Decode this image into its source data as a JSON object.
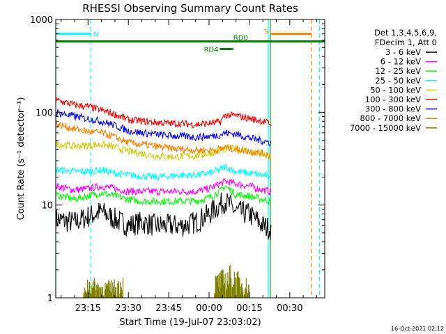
{
  "chart_data": {
    "type": "line",
    "title": "RHESSI Observing Summary Count Rates",
    "xlabel": "Start Time (19-Jul-07 23:03:02)",
    "ylabel": "Count Rate (s⁻¹ detector⁻¹)",
    "y_scale": "log",
    "ylim": [
      1,
      1000
    ],
    "xlim": [
      "23:03",
      "00:43"
    ],
    "x_ticks": [
      "23:15",
      "23:30",
      "23:45",
      "00:00",
      "00:15",
      "00:30"
    ],
    "y_ticks": [
      "1",
      "10",
      "100",
      "1000"
    ],
    "legend_header": [
      "Det 1,3,4,5,6,9,",
      "FDecim 1, Att 0"
    ],
    "legend_position": "right",
    "series": [
      {
        "name": "3 - 6 keV",
        "color": "#000000",
        "points": [
          [
            "23:03",
            7
          ],
          [
            "23:10",
            6.5
          ],
          [
            "23:15",
            7.5
          ],
          [
            "23:20",
            8.5
          ],
          [
            "23:25",
            7
          ],
          [
            "23:30",
            6
          ],
          [
            "23:35",
            6.5
          ],
          [
            "23:40",
            6
          ],
          [
            "23:45",
            6
          ],
          [
            "23:50",
            6
          ],
          [
            "23:55",
            6.5
          ],
          [
            "00:00",
            8
          ],
          [
            "00:04",
            10
          ],
          [
            "00:06",
            11
          ],
          [
            "00:10",
            8.5
          ],
          [
            "00:15",
            8
          ],
          [
            "00:20",
            6
          ],
          [
            "00:23",
            5.5
          ]
        ]
      },
      {
        "name": "6 - 12 keV",
        "color": "#ff00ff",
        "points": [
          [
            "23:03",
            16
          ],
          [
            "23:10",
            14.5
          ],
          [
            "23:15",
            15
          ],
          [
            "23:20",
            16
          ],
          [
            "23:25",
            15
          ],
          [
            "23:30",
            14
          ],
          [
            "23:35",
            14
          ],
          [
            "23:40",
            14
          ],
          [
            "23:45",
            14
          ],
          [
            "23:50",
            14
          ],
          [
            "23:55",
            14
          ],
          [
            "00:00",
            15
          ],
          [
            "00:04",
            17
          ],
          [
            "00:06",
            18
          ],
          [
            "00:10",
            17
          ],
          [
            "00:15",
            16
          ],
          [
            "00:20",
            14.5
          ],
          [
            "00:23",
            14
          ]
        ]
      },
      {
        "name": "12 - 25 keV",
        "color": "#00ff00",
        "points": [
          [
            "23:03",
            13
          ],
          [
            "23:10",
            11.5
          ],
          [
            "23:15",
            12.5
          ],
          [
            "23:20",
            13.5
          ],
          [
            "23:25",
            12.5
          ],
          [
            "23:30",
            11.5
          ],
          [
            "23:35",
            11
          ],
          [
            "23:40",
            11
          ],
          [
            "23:45",
            11
          ],
          [
            "23:50",
            11
          ],
          [
            "23:55",
            11
          ],
          [
            "00:00",
            12
          ],
          [
            "00:04",
            14
          ],
          [
            "00:06",
            16
          ],
          [
            "00:10",
            13
          ],
          [
            "00:15",
            12.5
          ],
          [
            "00:20",
            11.5
          ],
          [
            "00:23",
            11
          ]
        ]
      },
      {
        "name": "25 - 50 keV",
        "color": "#00ffff",
        "points": [
          [
            "23:03",
            24
          ],
          [
            "23:10",
            23
          ],
          [
            "23:15",
            23
          ],
          [
            "23:20",
            24
          ],
          [
            "23:25",
            22
          ],
          [
            "23:30",
            21
          ],
          [
            "23:35",
            20.5
          ],
          [
            "23:40",
            20
          ],
          [
            "23:45",
            20.5
          ],
          [
            "23:50",
            21
          ],
          [
            "23:55",
            21
          ],
          [
            "00:00",
            22
          ],
          [
            "00:04",
            24
          ],
          [
            "00:06",
            26
          ],
          [
            "00:10",
            23
          ],
          [
            "00:15",
            22
          ],
          [
            "00:20",
            21
          ],
          [
            "00:23",
            20.5
          ]
        ]
      },
      {
        "name": "50 - 100 keV",
        "color": "#cccc00",
        "points": [
          [
            "23:03",
            46
          ],
          [
            "23:10",
            43
          ],
          [
            "23:15",
            44
          ],
          [
            "23:20",
            45
          ],
          [
            "23:25",
            42
          ],
          [
            "23:30",
            38
          ],
          [
            "23:35",
            36
          ],
          [
            "23:40",
            34
          ],
          [
            "23:45",
            33
          ],
          [
            "23:50",
            33.5
          ],
          [
            "23:55",
            34
          ],
          [
            "00:00",
            36
          ],
          [
            "00:04",
            38
          ],
          [
            "00:06",
            40
          ],
          [
            "00:10",
            41
          ],
          [
            "00:15",
            38
          ],
          [
            "00:20",
            35
          ],
          [
            "00:23",
            33
          ]
        ]
      },
      {
        "name": "100 - 300 keV",
        "color": "#ff0000",
        "points": [
          [
            "23:03",
            135
          ],
          [
            "23:10",
            120
          ],
          [
            "23:15",
            115
          ],
          [
            "23:20",
            105
          ],
          [
            "23:25",
            95
          ],
          [
            "23:30",
            83
          ],
          [
            "23:35",
            80
          ],
          [
            "23:40",
            78
          ],
          [
            "23:45",
            76
          ],
          [
            "23:50",
            75
          ],
          [
            "23:55",
            74
          ],
          [
            "00:00",
            76
          ],
          [
            "00:04",
            78
          ],
          [
            "00:06",
            93
          ],
          [
            "00:10",
            92
          ],
          [
            "00:15",
            86
          ],
          [
            "00:20",
            80
          ],
          [
            "00:23",
            75
          ]
        ]
      },
      {
        "name": "300 - 800 keV",
        "color": "#0000ff",
        "points": [
          [
            "23:03",
            100
          ],
          [
            "23:10",
            90
          ],
          [
            "23:15",
            85
          ],
          [
            "23:20",
            80
          ],
          [
            "23:25",
            72
          ],
          [
            "23:30",
            63
          ],
          [
            "23:35",
            60
          ],
          [
            "23:40",
            58
          ],
          [
            "23:45",
            56
          ],
          [
            "23:50",
            55
          ],
          [
            "23:55",
            54
          ],
          [
            "00:00",
            55
          ],
          [
            "00:04",
            57
          ],
          [
            "00:06",
            60
          ],
          [
            "00:10",
            58
          ],
          [
            "00:15",
            53
          ],
          [
            "00:20",
            49
          ],
          [
            "00:23",
            47
          ]
        ]
      },
      {
        "name": "800 - 7000 keV",
        "color": "#ff8000",
        "points": [
          [
            "23:03",
            75
          ],
          [
            "23:10",
            66
          ],
          [
            "23:15",
            62
          ],
          [
            "23:20",
            60
          ],
          [
            "23:25",
            54
          ],
          [
            "23:30",
            47
          ],
          [
            "23:35",
            45
          ],
          [
            "23:40",
            43
          ],
          [
            "23:45",
            41
          ],
          [
            "23:50",
            40
          ],
          [
            "23:55",
            39
          ],
          [
            "00:00",
            39
          ],
          [
            "00:04",
            40
          ],
          [
            "00:06",
            42
          ],
          [
            "00:10",
            40
          ],
          [
            "00:15",
            38
          ],
          [
            "00:20",
            36
          ],
          [
            "00:23",
            34
          ]
        ]
      },
      {
        "name": "7000 - 15000 keV",
        "color": "#808000",
        "points": [
          [
            "23:13",
            1
          ],
          [
            "23:15",
            1.8
          ],
          [
            "23:20",
            1.5
          ],
          [
            "23:25",
            1.6
          ],
          [
            "23:28",
            1.8
          ],
          [
            "00:02",
            1.8
          ],
          [
            "00:08",
            2.3
          ],
          [
            "00:12",
            1.8
          ],
          [
            "00:15",
            1.6
          ]
        ]
      }
    ],
    "annotations": [
      {
        "label": "N",
        "color": "#00ffff",
        "level": 700,
        "from": "23:03",
        "to": "23:16"
      },
      {
        "label": "S",
        "color": "#ff8000",
        "level": 700,
        "from": "00:23",
        "to": "00:38"
      },
      {
        "label": "RD0",
        "color": "#008000",
        "level": 580,
        "from": "23:03",
        "to": "00:43"
      },
      {
        "label": "RD4",
        "color": "#008000",
        "level": 480,
        "from": "00:04",
        "to": "00:09"
      }
    ],
    "vertical_markers": [
      {
        "time": "23:03",
        "color": "#00ffff",
        "style": "solid"
      },
      {
        "time": "23:16",
        "color": "#00ffff",
        "style": "dashed"
      },
      {
        "time": "00:22",
        "color": "#00ffff",
        "style": "solid"
      },
      {
        "time": "00:22",
        "color": "#00aa00",
        "style": "solid"
      },
      {
        "time": "00:38",
        "color": "#ff8000",
        "style": "dashed"
      },
      {
        "time": "00:41",
        "color": "#00ffff",
        "style": "dashed"
      }
    ],
    "gaps": [
      [
        "00:23",
        "00:39"
      ]
    ]
  },
  "footer_date": "16-Oct-2021 02:12"
}
